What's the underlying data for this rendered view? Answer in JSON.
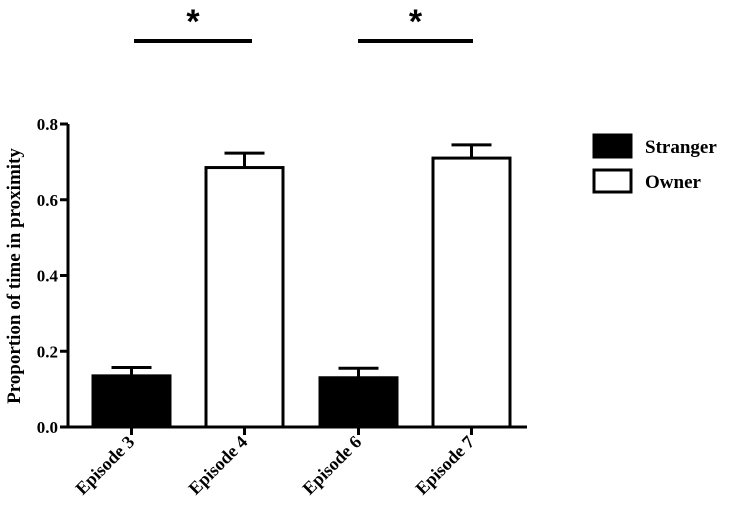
{
  "chart_data": {
    "type": "bar",
    "categories": [
      "Episode 3",
      "Episode 4",
      "Episode 6",
      "Episode 7"
    ],
    "values": [
      0.135,
      0.685,
      0.13,
      0.71
    ],
    "errors": [
      0.022,
      0.038,
      0.025,
      0.035
    ],
    "bar_groups": [
      "Stranger",
      "Owner",
      "Stranger",
      "Owner"
    ],
    "ylabel": "Proportion of  time in proximity",
    "xlabel": "",
    "ylim": [
      0,
      0.8
    ],
    "yticks": [
      0.0,
      0.2,
      0.4,
      0.6,
      0.8
    ],
    "ytick_labels": [
      "0.0",
      "0.2",
      "0.4",
      "0.6",
      "0.8"
    ],
    "legend": {
      "placement": "right",
      "entries": [
        {
          "name": "Stranger",
          "fill": "#000000"
        },
        {
          "name": "Owner",
          "fill": "#ffffff"
        }
      ]
    },
    "annotations": [
      {
        "text": "*",
        "between": [
          "Episode 3",
          "Episode 4"
        ]
      },
      {
        "text": "*",
        "between": [
          "Episode 6",
          "Episode 7"
        ]
      }
    ],
    "grid": false
  }
}
